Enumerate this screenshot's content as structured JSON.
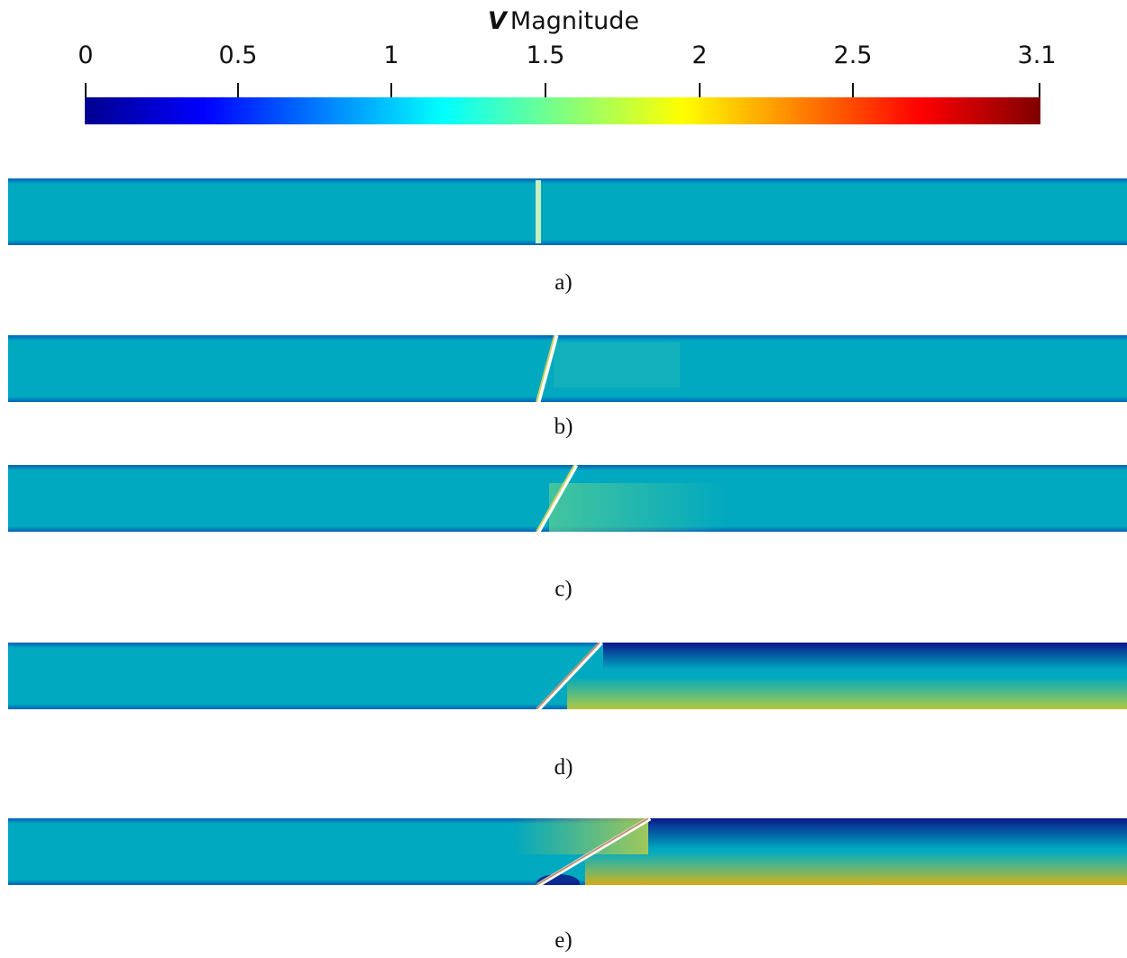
{
  "colorbar": {
    "symbol": "V",
    "title": "Magnitude",
    "ticks": [
      "0",
      "0.5",
      "1",
      "1.5",
      "2",
      "2.5",
      "3.1"
    ],
    "range": [
      0,
      3.1
    ],
    "colormap": [
      "#00008f",
      "#0000ff",
      "#0080ff",
      "#00ffff",
      "#80ff80",
      "#ffff00",
      "#ff8000",
      "#ff0000",
      "#800000"
    ]
  },
  "panels": [
    {
      "label": "a)",
      "wing_tilt": 0
    },
    {
      "label": "b)",
      "wing_tilt": 15
    },
    {
      "label": "c)",
      "wing_tilt": 30
    },
    {
      "label": "d)",
      "wing_tilt": 45
    },
    {
      "label": "e)",
      "wing_tilt": 60
    }
  ],
  "colors": {
    "base_flow": "#00a8c0",
    "wall": "#0060b8",
    "low": "#0a1a8a",
    "high": "#e0c000"
  }
}
